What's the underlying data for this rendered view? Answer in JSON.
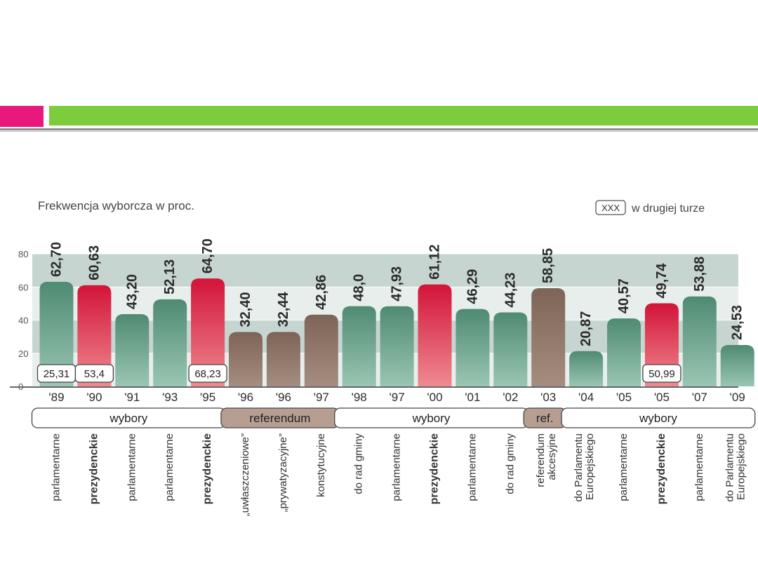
{
  "chart_data": {
    "type": "bar",
    "title": "Frekwencja wyborcza w proc.",
    "legend_box": "XXX",
    "legend_text": "w drugiej turze",
    "ylim": [
      0,
      80
    ],
    "yticks": [
      "0",
      "20",
      "40",
      "60",
      "80"
    ],
    "categories": [
      "'89",
      "'90",
      "'91",
      "'93",
      "'95",
      "'96",
      "'96",
      "'97",
      "'98",
      "'97",
      "'00",
      "'01",
      "'02",
      "'03",
      "'04",
      "'05",
      "'05",
      "'07",
      "'09"
    ],
    "values": [
      62.7,
      60.63,
      43.2,
      52.13,
      64.7,
      32.4,
      32.44,
      42.86,
      48.0,
      47.93,
      61.12,
      46.29,
      44.23,
      58.85,
      20.87,
      40.57,
      49.74,
      53.88,
      24.53
    ],
    "value_labels": [
      "62,70",
      "60,63",
      "43,20",
      "52,13",
      "64,70",
      "32,40",
      "32,44",
      "42,86",
      "48,0",
      "47,93",
      "61,12",
      "46,29",
      "44,23",
      "58,85",
      "20,87",
      "40,57",
      "49,74",
      "53,88",
      "24,53"
    ],
    "kinds": [
      "green",
      "red",
      "green",
      "green",
      "red",
      "brown",
      "brown",
      "brown",
      "green",
      "green",
      "red",
      "green",
      "green",
      "brown",
      "green",
      "green",
      "red",
      "green",
      "green"
    ],
    "sublabels": [
      "parlamentarne",
      "prezydenckie",
      "parlamentarne",
      "parlamentarne",
      "prezydenckie",
      "„uwłaszczeniowe”",
      "„prywatyzacyjne”",
      "konstytucyjne",
      "do rad gminy",
      "parlamentarne",
      "prezydenckie",
      "parlamentarne",
      "do rad gminy",
      "referendum|akcesyjne",
      "do Parlamentu|Europejskiego",
      "parlamentarne",
      "prezydenckie",
      "parlamentarne",
      "do Parlamentu|Europejskiego"
    ],
    "bold_sublabels": [
      false,
      true,
      false,
      false,
      true,
      false,
      false,
      false,
      false,
      false,
      true,
      false,
      false,
      false,
      false,
      false,
      true,
      false,
      false
    ],
    "second_round": [
      {
        "index": 0,
        "label": "25,31"
      },
      {
        "index": 1,
        "label": "53,4"
      },
      {
        "index": 4,
        "label": "68,23"
      },
      {
        "index": 16,
        "label": "50,99"
      }
    ],
    "groups": [
      {
        "label": "wybory",
        "from": 0,
        "to": 4,
        "kind": "white"
      },
      {
        "label": "referendum",
        "from": 5,
        "to": 7,
        "kind": "brown"
      },
      {
        "label": "wybory",
        "from": 8,
        "to": 12,
        "kind": "white"
      },
      {
        "label": "ref.",
        "from": 13,
        "to": 13,
        "kind": "brown"
      },
      {
        "label": "wybory",
        "from": 14,
        "to": 18,
        "kind": "white"
      }
    ],
    "colors": {
      "green_top": "#4f8a72",
      "green_bottom": "#9ac6b3",
      "red_top": "#d31438",
      "red_bottom": "#ef8a90",
      "brown_top": "#7e6457",
      "brown_bottom": "#a58d80",
      "band_dark": "#c7d5d1",
      "band_light": "#e7eeec",
      "group_brown": "#b79e93"
    }
  }
}
